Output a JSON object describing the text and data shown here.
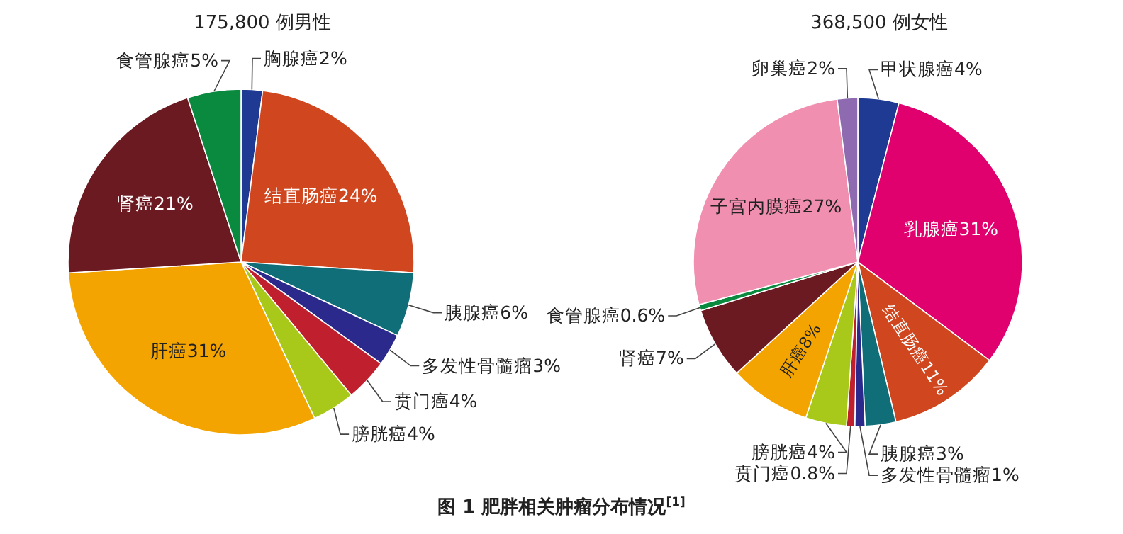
{
  "chart_data": [
    {
      "type": "pie",
      "title": "175,800 例男性",
      "categories": [
        "胸腺癌",
        "结直肠癌",
        "胰腺癌",
        "多发性骨髓瘤",
        "贲门癌",
        "膀胱癌",
        "肝癌",
        "肾癌",
        "食管腺癌"
      ],
      "values": [
        2,
        24,
        6,
        3,
        4,
        4,
        31,
        21,
        5
      ],
      "value_labels": [
        "2%",
        "24%",
        "6%",
        "3%",
        "4%",
        "4%",
        "31%",
        "21%",
        "5%"
      ],
      "colors": [
        "#1f3a93",
        "#d0461e",
        "#0f6e78",
        "#2b2a8c",
        "#c0202e",
        "#a8c81a",
        "#f4a400",
        "#6b1a22",
        "#0a8a3e"
      ],
      "annotations": [
        "图 1 肥胖相关肿瘤分布情况$^{[1]}$"
      ]
    },
    {
      "type": "pie",
      "title": "368,500 例女性",
      "categories": [
        "甲状腺癌",
        "乳腺癌",
        "结直肠癌",
        "胰腺癌",
        "多发性骨髓瘤",
        "贲门癌",
        "膀胱癌",
        "肝癌",
        "肾癌",
        "食管腺癌",
        "子宫内膜癌",
        "卵巢癌"
      ],
      "values": [
        4,
        31,
        11,
        3,
        1,
        0.8,
        4,
        8,
        7,
        0.6,
        27,
        2
      ],
      "value_labels": [
        "4%",
        "31%",
        "11%",
        "3%",
        "1%",
        "0.8%",
        "4%",
        "8%",
        "7%",
        "0.6%",
        "27%",
        "2%"
      ],
      "colors": [
        "#1f3a93",
        "#e0006e",
        "#d0461e",
        "#0f6e78",
        "#2b2a8c",
        "#c0202e",
        "#a8c81a",
        "#f4a400",
        "#6b1a22",
        "#0a8a3e",
        "#f08fb0",
        "#8e6bb0"
      ]
    }
  ]
}
